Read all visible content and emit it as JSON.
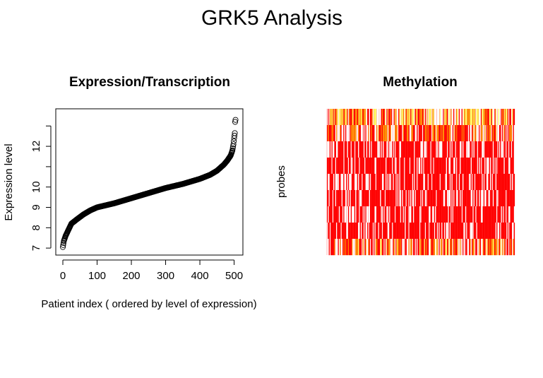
{
  "figure": {
    "title": "GRK5 Analysis"
  },
  "chart_data": [
    {
      "type": "scatter",
      "title": "Expression/Transcription",
      "xlabel": "Patient index ( ordered by level of expression)",
      "ylabel": "Expression level",
      "xlim": [
        0,
        505
      ],
      "ylim": [
        6.9,
        13.6
      ],
      "x_ticks": [
        0,
        100,
        200,
        300,
        400,
        500
      ],
      "y_ticks": [
        7,
        8,
        9,
        10,
        12
      ],
      "y_tick_marks": [
        7,
        8,
        9,
        10,
        11,
        12,
        13
      ],
      "n_points": 505,
      "marker": "open-circle",
      "curve_knots": {
        "x": [
          0,
          3,
          8,
          15,
          25,
          40,
          60,
          80,
          100,
          150,
          200,
          250,
          300,
          350,
          400,
          430,
          450,
          470,
          480,
          490,
          495,
          498,
          500,
          502,
          503,
          504
        ],
        "y": [
          7.05,
          7.35,
          7.6,
          7.85,
          8.2,
          8.4,
          8.65,
          8.85,
          9.0,
          9.2,
          9.45,
          9.7,
          9.95,
          10.15,
          10.4,
          10.6,
          10.8,
          11.1,
          11.3,
          11.55,
          11.8,
          12.1,
          12.4,
          12.65,
          13.2,
          13.3
        ]
      }
    },
    {
      "type": "heatmap",
      "title": "Methylation",
      "ylabel": "probes",
      "n_columns": 205,
      "band_levels": [
        0.55,
        0.3,
        0.02,
        0.02,
        0.0,
        0.03,
        0.0,
        0.0,
        0.38
      ],
      "colors": {
        "low": "#ff0000",
        "mid": "#ff8c00",
        "high": "#ffff66",
        "gap": "#ffffff",
        "grid_line": "#ff0000"
      }
    }
  ]
}
